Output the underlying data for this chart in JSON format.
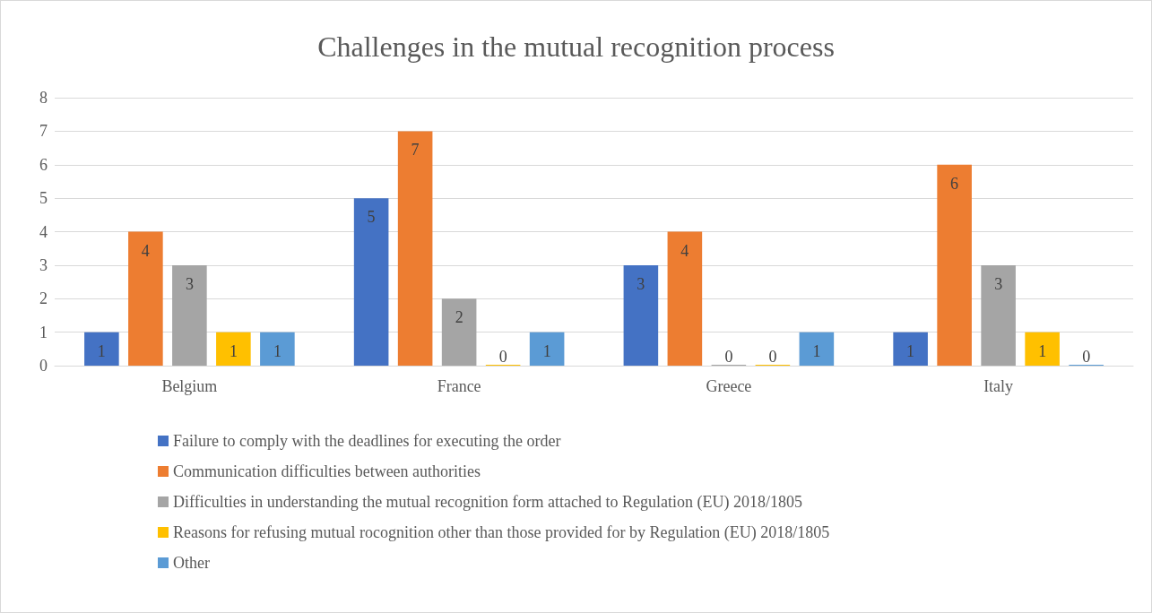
{
  "chart_data": {
    "type": "bar",
    "title": "Challenges in the mutual recognition process",
    "categories": [
      "Belgium",
      "France",
      "Greece",
      "Italy"
    ],
    "series": [
      {
        "name": "Failure to comply with the deadlines for executing the order",
        "color": "#4472c4",
        "values": [
          1,
          5,
          3,
          1
        ]
      },
      {
        "name": "Communication difficulties between authorities",
        "color": "#ed7d31",
        "values": [
          4,
          7,
          4,
          6
        ]
      },
      {
        "name": "Difficulties in understanding the mutual recognition form attached to Regulation (EU) 2018/1805",
        "color": "#a5a5a5",
        "values": [
          3,
          2,
          0,
          3
        ]
      },
      {
        "name": "Reasons for refusing mutual rocognition other than those provided for by Regulation (EU) 2018/1805",
        "color": "#ffc000",
        "values": [
          1,
          0,
          0,
          1
        ]
      },
      {
        "name": "Other",
        "color": "#5b9bd5",
        "values": [
          1,
          1,
          1,
          0
        ]
      }
    ],
    "ylim": [
      0,
      8
    ],
    "yticks": [
      0,
      1,
      2,
      3,
      4,
      5,
      6,
      7,
      8
    ],
    "grid": "y",
    "legend": "bottom",
    "data_labels": true
  }
}
